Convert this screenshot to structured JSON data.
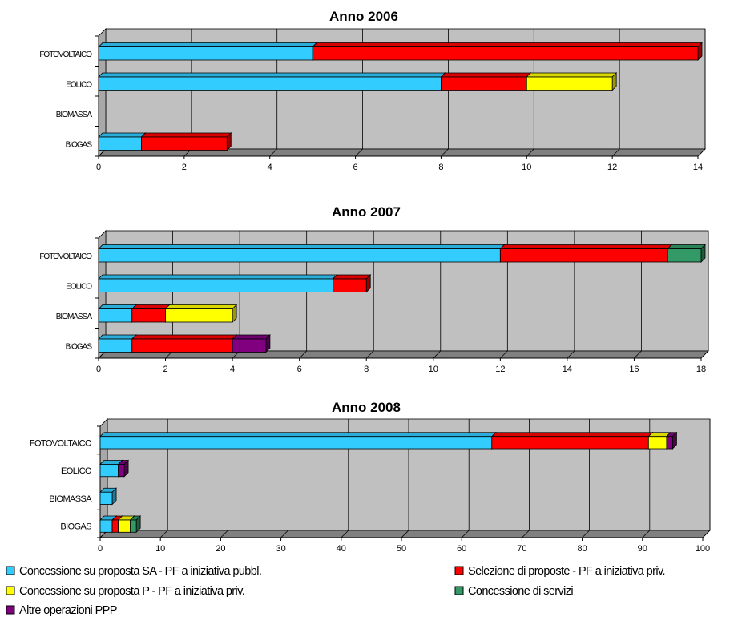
{
  "chart_data": [
    {
      "type": "bar",
      "orientation": "horizontal",
      "stacked": true,
      "title": "Anno 2006",
      "categories": [
        "FOTOVOLTAICO",
        "EOLICO",
        "BIOMASSA",
        "BIOGAS"
      ],
      "xlim": [
        0,
        14
      ],
      "xticks": [
        0,
        2,
        4,
        6,
        8,
        10,
        12,
        14
      ],
      "grid": true,
      "series": [
        {
          "name": "Concessione su proposta SA - PF a iniziativa pubbl.",
          "values": [
            5,
            8,
            0,
            1
          ]
        },
        {
          "name": "Selezione di proposte - PF a iniziativa priv.",
          "values": [
            9,
            2,
            0,
            2
          ]
        },
        {
          "name": "Concessione su proposta P - PF a iniziativa priv.",
          "values": [
            0,
            2,
            0,
            0
          ]
        },
        {
          "name": "Concessione di servizi",
          "values": [
            0,
            0,
            0,
            0
          ]
        },
        {
          "name": "Altre operazioni PPP",
          "values": [
            0,
            0,
            0,
            0
          ]
        }
      ]
    },
    {
      "type": "bar",
      "orientation": "horizontal",
      "stacked": true,
      "title": "Anno 2007",
      "categories": [
        "FOTOVOLTAICO",
        "EOLICO",
        "BIOMASSA",
        "BIOGAS"
      ],
      "xlim": [
        0,
        18
      ],
      "xticks": [
        0,
        2,
        4,
        6,
        8,
        10,
        12,
        14,
        16,
        18
      ],
      "grid": true,
      "series": [
        {
          "name": "Concessione su proposta SA - PF a iniziativa pubbl.",
          "values": [
            12,
            7,
            1,
            1
          ]
        },
        {
          "name": "Selezione di proposte - PF a iniziativa priv.",
          "values": [
            5,
            1,
            1,
            3
          ]
        },
        {
          "name": "Concessione su proposta P - PF a iniziativa priv.",
          "values": [
            0,
            0,
            2,
            0
          ]
        },
        {
          "name": "Concessione di servizi",
          "values": [
            1,
            0,
            0,
            0
          ]
        },
        {
          "name": "Altre operazioni PPP",
          "values": [
            0,
            0,
            0,
            1
          ]
        }
      ]
    },
    {
      "type": "bar",
      "orientation": "horizontal",
      "stacked": true,
      "title": "Anno 2008",
      "categories": [
        "FOTOVOLTAICO",
        "EOLICO",
        "BIOMASSA",
        "BIOGAS"
      ],
      "xlim": [
        0,
        100
      ],
      "xticks": [
        0,
        10,
        20,
        30,
        40,
        50,
        60,
        70,
        80,
        90,
        100
      ],
      "grid": true,
      "series": [
        {
          "name": "Concessione su proposta SA - PF a iniziativa pubbl.",
          "values": [
            65,
            3,
            2,
            2
          ]
        },
        {
          "name": "Selezione di proposte - PF a iniziativa priv.",
          "values": [
            26,
            0,
            0,
            1
          ]
        },
        {
          "name": "Concessione su proposta P - PF a iniziativa priv.",
          "values": [
            3,
            0,
            0,
            2
          ]
        },
        {
          "name": "Concessione di servizi",
          "values": [
            0,
            0,
            0,
            1
          ]
        },
        {
          "name": "Altre operazioni PPP",
          "values": [
            1,
            1,
            0,
            0
          ]
        }
      ]
    }
  ],
  "legend": {
    "placement": "bottom",
    "items": [
      {
        "label": "Concessione su proposta SA - PF a iniziativa pubbl.",
        "color": "#33ccff"
      },
      {
        "label": "Selezione di proposte - PF a iniziativa priv.",
        "color": "#ff0000"
      },
      {
        "label": "Concessione su proposta P - PF a iniziativa priv.",
        "color": "#ffff00"
      },
      {
        "label": "Concessione di servizi",
        "color": "#339966"
      },
      {
        "label": "Altre operazioni PPP",
        "color": "#800080"
      }
    ]
  },
  "colors": {
    "plot_wall": "#c0c0c0",
    "plot_floor": "#808080",
    "gridline": "#000000"
  }
}
